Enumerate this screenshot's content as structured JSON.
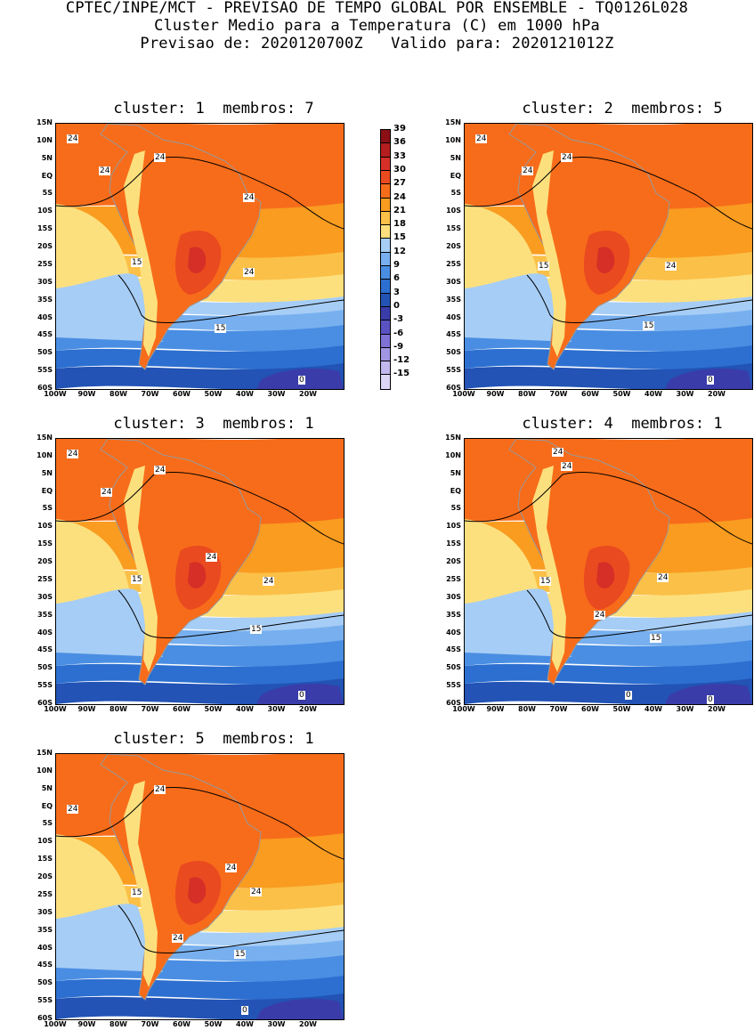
{
  "header": {
    "line1": "CPTEC/INPE/MCT - PREVISAO DE TEMPO GLOBAL POR ENSEMBLE - TQ0126L028",
    "line2": "Cluster Medio para a Temperatura (C) em 1000 hPa",
    "line3": "Previsao de: 2020120700Z   Valido para: 2020121012Z"
  },
  "panels": [
    {
      "title": "cluster: 1  membros: 7",
      "labels": [
        "24",
        "24",
        "24",
        "24",
        "24",
        "15",
        "15",
        "0"
      ]
    },
    {
      "title": "cluster: 2  membros: 5",
      "labels": [
        "24",
        "24",
        "24",
        "24",
        "15",
        "15",
        "0"
      ]
    },
    {
      "title": "cluster: 3  membros: 1",
      "labels": [
        "24",
        "24",
        "24",
        "24",
        "24",
        "15",
        "15",
        "0"
      ]
    },
    {
      "title": "cluster: 4  membros: 1",
      "labels": [
        "24",
        "24",
        "24",
        "24",
        "15",
        "15",
        "0",
        "0"
      ]
    },
    {
      "title": "cluster: 5  membros: 1",
      "labels": [
        "24",
        "24",
        "24",
        "24",
        "24",
        "15",
        "15",
        "0"
      ]
    }
  ],
  "lat_labels": [
    "15N",
    "10N",
    "5N",
    "EQ",
    "5S",
    "10S",
    "15S",
    "20S",
    "25S",
    "30S",
    "35S",
    "40S",
    "45S",
    "50S",
    "55S",
    "60S"
  ],
  "lon_labels": [
    "100W",
    "90W",
    "80W",
    "70W",
    "60W",
    "50W",
    "40W",
    "30W",
    "20W"
  ],
  "colorbar": {
    "labels": [
      "39",
      "36",
      "33",
      "30",
      "27",
      "24",
      "21",
      "18",
      "15",
      "12",
      "9",
      "6",
      "3",
      "0",
      "-3",
      "-6",
      "-9",
      "-12",
      "-15"
    ],
    "colors": [
      "#8b0f15",
      "#b51d1f",
      "#d62f27",
      "#ea4a1f",
      "#f76c1a",
      "#f99c20",
      "#fbc048",
      "#fde07e",
      "#a6cdf5",
      "#78b0ef",
      "#4a8ee3",
      "#2c6fd0",
      "#2253b5",
      "#3a3caa",
      "#5a52c2",
      "#7f72d4",
      "#a196e1",
      "#c3b8ee",
      "#ddd6f6"
    ]
  }
}
